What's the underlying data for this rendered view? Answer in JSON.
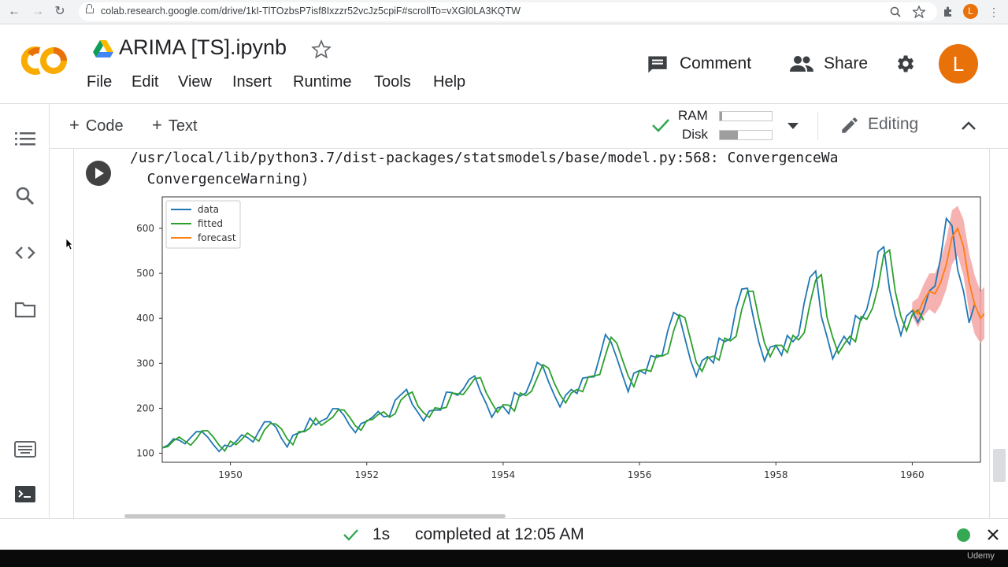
{
  "browser": {
    "url": "colab.research.google.com/drive/1kI-TlTOzbsP7isf8Ixzzr52vcJz5cpiF#scrollTo=vXGl0LA3KQTW",
    "profile_initial": "L"
  },
  "header": {
    "title": "ARIMA [TS].ipynb",
    "logo_text": "CO",
    "menu": [
      "File",
      "Edit",
      "View",
      "Insert",
      "Runtime",
      "Tools",
      "Help"
    ],
    "comment_label": "Comment",
    "share_label": "Share",
    "avatar_initial": "L"
  },
  "toolbar": {
    "code_label": "Code",
    "text_label": "Text",
    "ram_label": "RAM",
    "disk_label": "Disk",
    "ram_usage": 0.04,
    "disk_usage": 0.35,
    "editing_label": "Editing",
    "accent_green": "#34a853"
  },
  "sidebar": {
    "icons": [
      "table-of-contents-icon",
      "search-icon",
      "code-snippets-icon",
      "files-icon",
      "command-palette-icon",
      "terminal-icon"
    ]
  },
  "cell": {
    "output_lines": [
      "/usr/local/lib/python3.7/dist-packages/statsmodels/base/model.py:568: ConvergenceWa",
      "  ConvergenceWarning)"
    ]
  },
  "chart_data": {
    "type": "line",
    "title": "",
    "xlabel": "",
    "ylabel": "",
    "xlim": [
      1949,
      1961
    ],
    "ylim": [
      80,
      670
    ],
    "x_ticks": [
      1950,
      1952,
      1954,
      1956,
      1958,
      1960
    ],
    "y_ticks": [
      100,
      200,
      300,
      400,
      500,
      600
    ],
    "legend_position": "top-left",
    "grid": false,
    "x_monthly_start_year": 1949,
    "series": [
      {
        "name": "data",
        "color": "#1f77b4",
        "values": [
          112,
          118,
          132,
          129,
          121,
          135,
          148,
          148,
          136,
          119,
          104,
          118,
          115,
          126,
          141,
          135,
          125,
          149,
          170,
          170,
          158,
          133,
          114,
          140,
          145,
          150,
          178,
          163,
          172,
          178,
          199,
          199,
          184,
          162,
          146,
          166,
          171,
          180,
          193,
          181,
          183,
          218,
          230,
          242,
          209,
          191,
          172,
          194,
          196,
          196,
          236,
          235,
          229,
          243,
          264,
          272,
          237,
          211,
          180,
          201,
          204,
          188,
          235,
          227,
          234,
          264,
          302,
          293,
          259,
          229,
          203,
          229,
          242,
          233,
          267,
          269,
          270,
          315,
          364,
          347,
          312,
          274,
          237,
          278,
          284,
          277,
          317,
          313,
          318,
          374,
          413,
          405,
          355,
          306,
          271,
          306,
          315,
          301,
          356,
          348,
          355,
          422,
          465,
          467,
          404,
          347,
          305,
          336,
          340,
          318,
          362,
          348,
          363,
          435,
          491,
          505,
          404,
          359,
          310,
          337,
          360,
          342,
          406,
          396,
          420,
          472,
          548,
          559,
          463,
          407,
          362,
          405,
          417,
          391,
          419,
          461,
          472,
          535,
          622,
          606,
          508,
          461,
          390,
          432
        ]
      },
      {
        "name": "fitted",
        "color": "#2ca02c",
        "values": [
          112,
          115,
          128,
          136,
          127,
          118,
          132,
          150,
          150,
          136,
          118,
          105,
          127,
          119,
          131,
          145,
          136,
          127,
          152,
          166,
          165,
          154,
          132,
          119,
          148,
          148,
          156,
          178,
          162,
          171,
          180,
          197,
          196,
          180,
          161,
          151,
          173,
          175,
          186,
          192,
          180,
          188,
          218,
          230,
          236,
          205,
          190,
          180,
          201,
          199,
          202,
          234,
          232,
          231,
          248,
          266,
          268,
          235,
          212,
          191,
          208,
          207,
          194,
          234,
          228,
          238,
          268,
          297,
          289,
          256,
          230,
          212,
          234,
          242,
          237,
          270,
          272,
          275,
          318,
          358,
          345,
          308,
          272,
          248,
          284,
          286,
          282,
          318,
          316,
          322,
          372,
          408,
          401,
          352,
          302,
          282,
          312,
          316,
          307,
          356,
          350,
          360,
          420,
          460,
          460,
          399,
          345,
          315,
          340,
          340,
          324,
          362,
          352,
          368,
          432,
          485,
          497,
          402,
          358,
          322,
          342,
          360,
          348,
          404,
          398,
          422,
          470,
          542,
          552,
          460,
          404,
          372,
          408,
          418,
          396
        ]
      },
      {
        "name": "forecast",
        "color": "#ff7f0e",
        "start_index": 132,
        "values": [
          420,
          410,
          440,
          460,
          455,
          480,
          520,
          580,
          600,
          560,
          480,
          430,
          400,
          415,
          450
        ],
        "ci_lower": [
          405,
          380,
          405,
          420,
          410,
          430,
          465,
          520,
          540,
          495,
          415,
          365,
          345,
          360,
          390
        ],
        "ci_upper": [
          436,
          445,
          475,
          500,
          500,
          530,
          575,
          640,
          650,
          620,
          545,
          495,
          460,
          475,
          505
        ],
        "ci_color": "#f4a3a3"
      }
    ]
  },
  "status": {
    "duration": "1s",
    "completed_text": "completed at 12:05 AM",
    "watermark": "Udemy"
  }
}
